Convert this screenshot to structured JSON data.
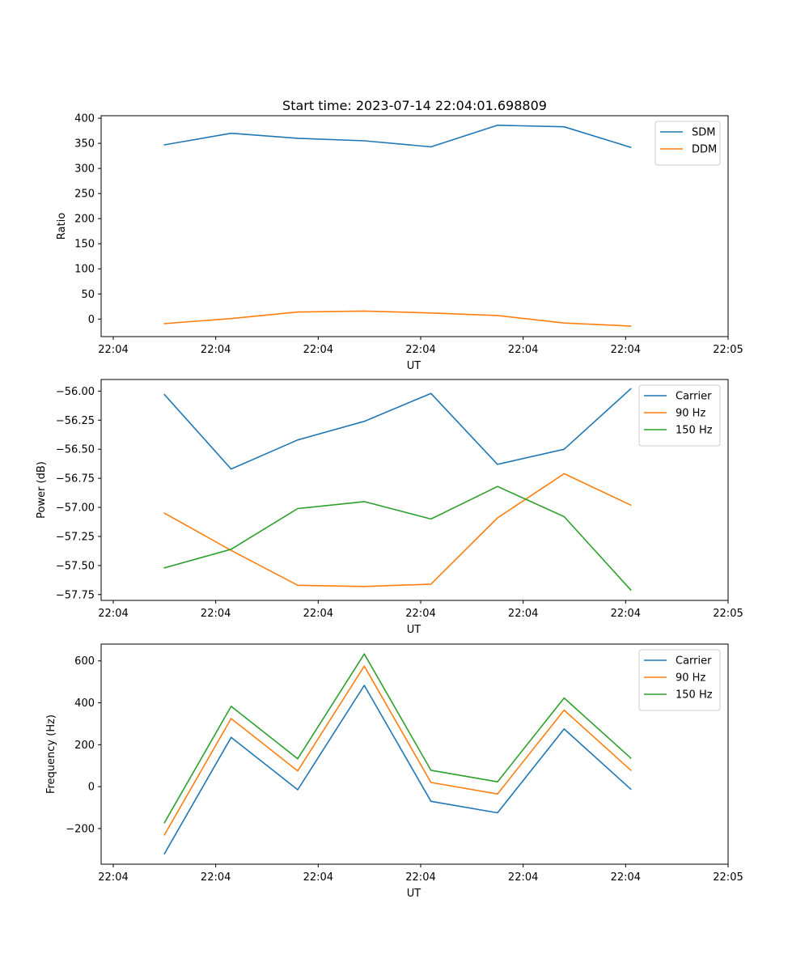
{
  "chart_data": [
    {
      "type": "line",
      "title": "Start time: 2023-07-14 22:04:01.698809",
      "xlabel": "UT",
      "ylabel": "Ratio",
      "xlim": [
        0,
        6
      ],
      "ylim": [
        -35,
        405
      ],
      "x_tick_positions": [
        0,
        1,
        2,
        3,
        4,
        5,
        6
      ],
      "x_tick_labels": [
        "22:04",
        "22:04",
        "22:04",
        "22:04",
        "22:04",
        "22:04",
        "22:05"
      ],
      "y_ticks": [
        0,
        50,
        100,
        150,
        200,
        250,
        300,
        350,
        400
      ],
      "y_tick_labels": [
        "0",
        "50",
        "100",
        "150",
        "200",
        "250",
        "300",
        "350",
        "400"
      ],
      "legend_position": "top-right",
      "grid": false,
      "x": [
        0.5,
        1.15,
        1.8,
        2.45,
        3.1,
        3.75,
        4.4,
        5.05
      ],
      "series": [
        {
          "name": "SDM",
          "color": "#1f77b4",
          "values": [
            347,
            370,
            360,
            355,
            343,
            386,
            383,
            342
          ]
        },
        {
          "name": "DDM",
          "color": "#ff7f0e",
          "values": [
            -9,
            1,
            14,
            16,
            12,
            7,
            -8,
            -14
          ]
        }
      ]
    },
    {
      "type": "line",
      "title": "",
      "xlabel": "UT",
      "ylabel": "Power (dB)",
      "xlim": [
        0,
        6
      ],
      "ylim": [
        -57.8,
        -55.9
      ],
      "x_tick_positions": [
        0,
        1,
        2,
        3,
        4,
        5,
        6
      ],
      "x_tick_labels": [
        "22:04",
        "22:04",
        "22:04",
        "22:04",
        "22:04",
        "22:04",
        "22:05"
      ],
      "y_ticks": [
        -56.0,
        -56.25,
        -56.5,
        -56.75,
        -57.0,
        -57.25,
        -57.5,
        -57.75
      ],
      "y_tick_labels": [
        "−56.00",
        "−56.25",
        "−56.50",
        "−56.75",
        "−57.00",
        "−57.25",
        "−57.50",
        "−57.75"
      ],
      "legend_position": "top-right",
      "grid": false,
      "x": [
        0.5,
        1.15,
        1.8,
        2.45,
        3.1,
        3.75,
        4.4,
        5.05
      ],
      "series": [
        {
          "name": "Carrier",
          "color": "#1f77b4",
          "values": [
            -56.03,
            -56.67,
            -56.42,
            -56.26,
            -56.02,
            -56.63,
            -56.5,
            -55.98
          ]
        },
        {
          "name": "90 Hz",
          "color": "#ff7f0e",
          "values": [
            -57.05,
            -57.37,
            -57.67,
            -57.68,
            -57.66,
            -57.09,
            -56.71,
            -56.98
          ]
        },
        {
          "name": "150 Hz",
          "color": "#2ca02c",
          "values": [
            -57.52,
            -57.36,
            -57.01,
            -56.95,
            -57.1,
            -56.82,
            -57.08,
            -57.71
          ]
        }
      ]
    },
    {
      "type": "line",
      "title": "",
      "xlabel": "UT",
      "ylabel": "Frequency (Hz)",
      "xlim": [
        0,
        6
      ],
      "ylim": [
        -370,
        680
      ],
      "x_tick_positions": [
        0,
        1,
        2,
        3,
        4,
        5,
        6
      ],
      "x_tick_labels": [
        "22:04",
        "22:04",
        "22:04",
        "22:04",
        "22:04",
        "22:04",
        "22:05"
      ],
      "y_ticks": [
        -200,
        0,
        200,
        400,
        600
      ],
      "y_tick_labels": [
        "−200",
        "0",
        "200",
        "400",
        "600"
      ],
      "legend_position": "top-right",
      "grid": false,
      "x": [
        0.5,
        1.15,
        1.8,
        2.45,
        3.1,
        3.75,
        4.4,
        5.05
      ],
      "series": [
        {
          "name": "Carrier",
          "color": "#1f77b4",
          "values": [
            -320,
            235,
            -15,
            483,
            -70,
            -125,
            275,
            -12
          ]
        },
        {
          "name": "90 Hz",
          "color": "#ff7f0e",
          "values": [
            -230,
            325,
            75,
            575,
            20,
            -35,
            365,
            78
          ]
        },
        {
          "name": "150 Hz",
          "color": "#2ca02c",
          "values": [
            -172,
            383,
            133,
            633,
            78,
            23,
            423,
            136
          ]
        }
      ]
    }
  ]
}
